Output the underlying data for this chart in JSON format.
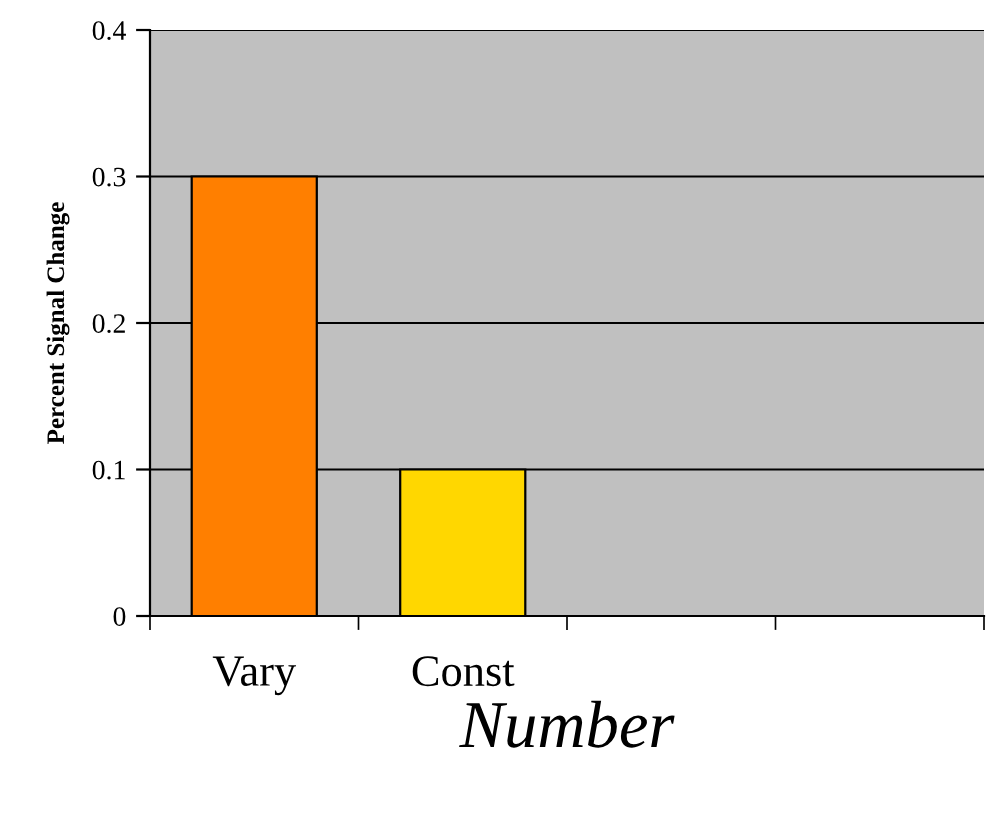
{
  "chart_data": {
    "type": "bar",
    "xlabel": "Number",
    "ylabel": "Percent Signal Change",
    "categories": [
      "Vary",
      "Const",
      null,
      null
    ],
    "values": [
      0.3,
      0.1,
      null,
      null
    ],
    "colors": [
      "#ff7f00",
      "#ffd700",
      "#ff7f00",
      "#ffd700"
    ],
    "ylim": [
      0,
      0.4
    ],
    "yticks": [
      0,
      0.1,
      0.2,
      0.3,
      0.4
    ],
    "grid": "y"
  }
}
